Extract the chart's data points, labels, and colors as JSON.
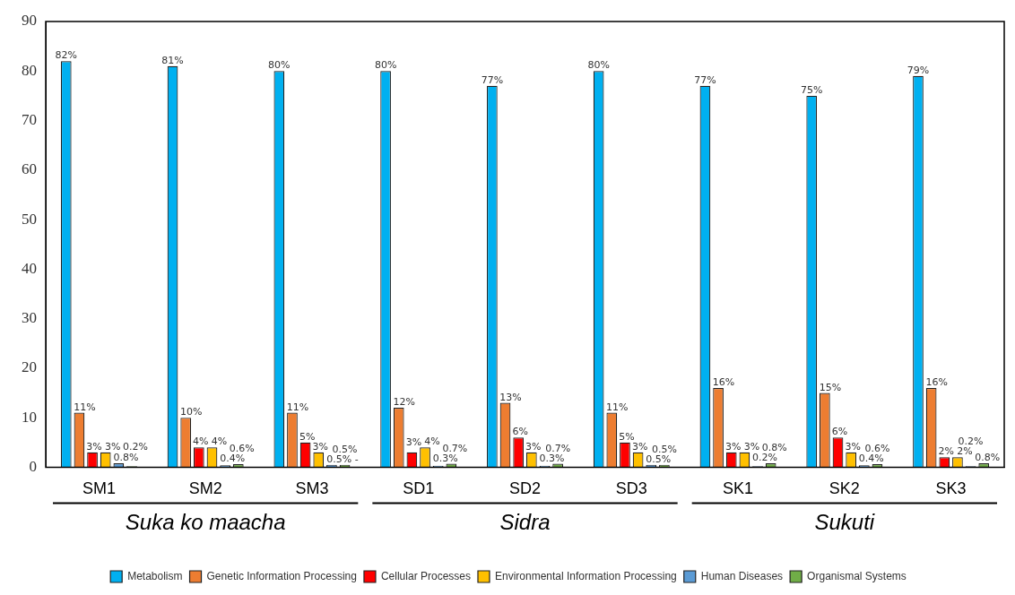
{
  "chart_data": {
    "type": "bar",
    "categories": [
      "SM1",
      "SM2",
      "SM3",
      "SD1",
      "SD2",
      "SD3",
      "SK1",
      "SK2",
      "SK3"
    ],
    "series": [
      {
        "name": "Metabolism",
        "color": "#00b0f0",
        "values": [
          82,
          81,
          80,
          80,
          77,
          80,
          77,
          75,
          79
        ],
        "value_labels": [
          "82%",
          "81%",
          "80%",
          "80%",
          "77%",
          "80%",
          "77%",
          "75%",
          "79%"
        ]
      },
      {
        "name": "Genetic Information Processing",
        "color": "#ed7d31",
        "values": [
          11,
          10,
          11,
          12,
          13,
          11,
          16,
          15,
          16
        ],
        "value_labels": [
          "11%",
          "10%",
          "11%",
          "12%",
          "13%",
          "11%",
          "16%",
          "15%",
          "16%"
        ]
      },
      {
        "name": "Cellular Processes",
        "color": "#ff0000",
        "values": [
          3,
          4,
          5,
          3,
          6,
          5,
          3,
          6,
          2
        ],
        "value_labels": [
          "3%",
          "4%",
          "5%",
          "3%",
          "6%",
          "5%",
          "3%",
          "6%",
          "2%"
        ]
      },
      {
        "name": "Environmental Information Processing",
        "color": "#ffc000",
        "values": [
          3,
          4,
          3,
          4,
          3,
          3,
          3,
          3,
          2
        ],
        "value_labels": [
          "3%",
          "4%",
          "3%",
          "4%",
          "3%",
          "3%",
          "3%",
          "3%",
          "2%"
        ]
      },
      {
        "name": "Human Diseases",
        "color": "#5b9bd5",
        "values": [
          0.8,
          0.4,
          0.5,
          0.3,
          0.3,
          0.5,
          0.2,
          0.4,
          0.2
        ],
        "value_labels": [
          "0.8%",
          "0.4%",
          "0.5% -",
          "0.3%",
          "0.3%",
          "0.5%",
          "0.2%",
          "0.4%",
          "0.2%"
        ]
      },
      {
        "name": "Organismal Systems",
        "color": "#70ad47",
        "values": [
          0.2,
          0.6,
          0.5,
          0.7,
          0.7,
          0.5,
          0.8,
          0.6,
          0.8
        ],
        "value_labels": [
          "0.2%",
          "0.6%",
          "0.5%",
          "0.7%",
          "0.7%",
          "0.5%",
          "0.8%",
          "0.6%",
          "0.8%"
        ]
      }
    ],
    "ylim": [
      0,
      90
    ],
    "yticks": [
      0,
      10,
      20,
      30,
      40,
      50,
      60,
      70,
      80,
      90
    ],
    "grid": false,
    "legend": "bottom",
    "annotations": [
      "Suka ko maacha",
      "Sidra",
      "Sukuti"
    ]
  }
}
